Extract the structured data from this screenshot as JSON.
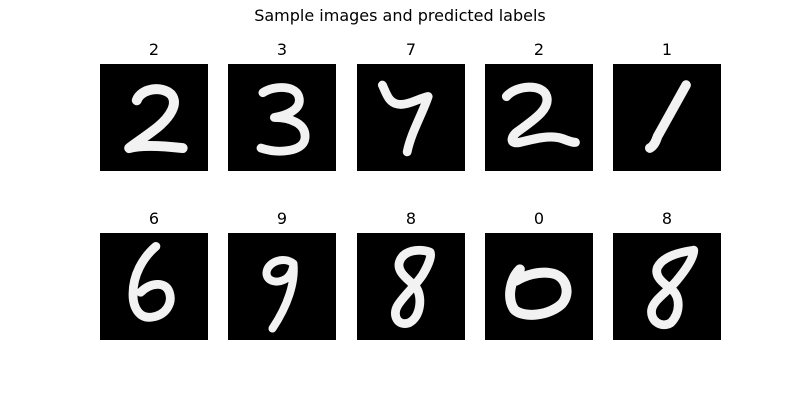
{
  "figure": {
    "title": "Sample images and predicted labels"
  },
  "samples": [
    {
      "label": "2"
    },
    {
      "label": "3"
    },
    {
      "label": "7"
    },
    {
      "label": "2"
    },
    {
      "label": "1"
    },
    {
      "label": "6"
    },
    {
      "label": "9"
    },
    {
      "label": "8"
    },
    {
      "label": "0"
    },
    {
      "label": "8"
    }
  ],
  "colors": {
    "background": "#000000",
    "stroke": "#f2f2f2"
  }
}
